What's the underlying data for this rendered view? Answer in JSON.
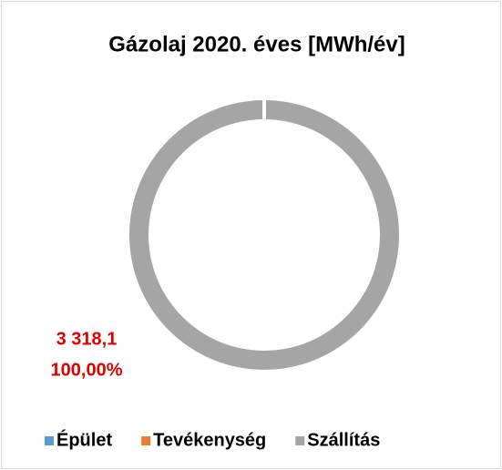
{
  "chart_data": {
    "type": "donut",
    "title": "Gázolaj 2020. éves [MWh/év]",
    "categories": [
      "Épület",
      "Tevékenység",
      "Szállítás"
    ],
    "values": [
      0,
      0,
      3318.1
    ],
    "value_labels": [
      null,
      null,
      "3 318,1"
    ],
    "percent_labels": [
      null,
      null,
      "100,00%"
    ],
    "colors": [
      "#5b9bd5",
      "#ed7d31",
      "#a5a5a5"
    ],
    "label_color": "#e00000",
    "legend": "bottom"
  }
}
